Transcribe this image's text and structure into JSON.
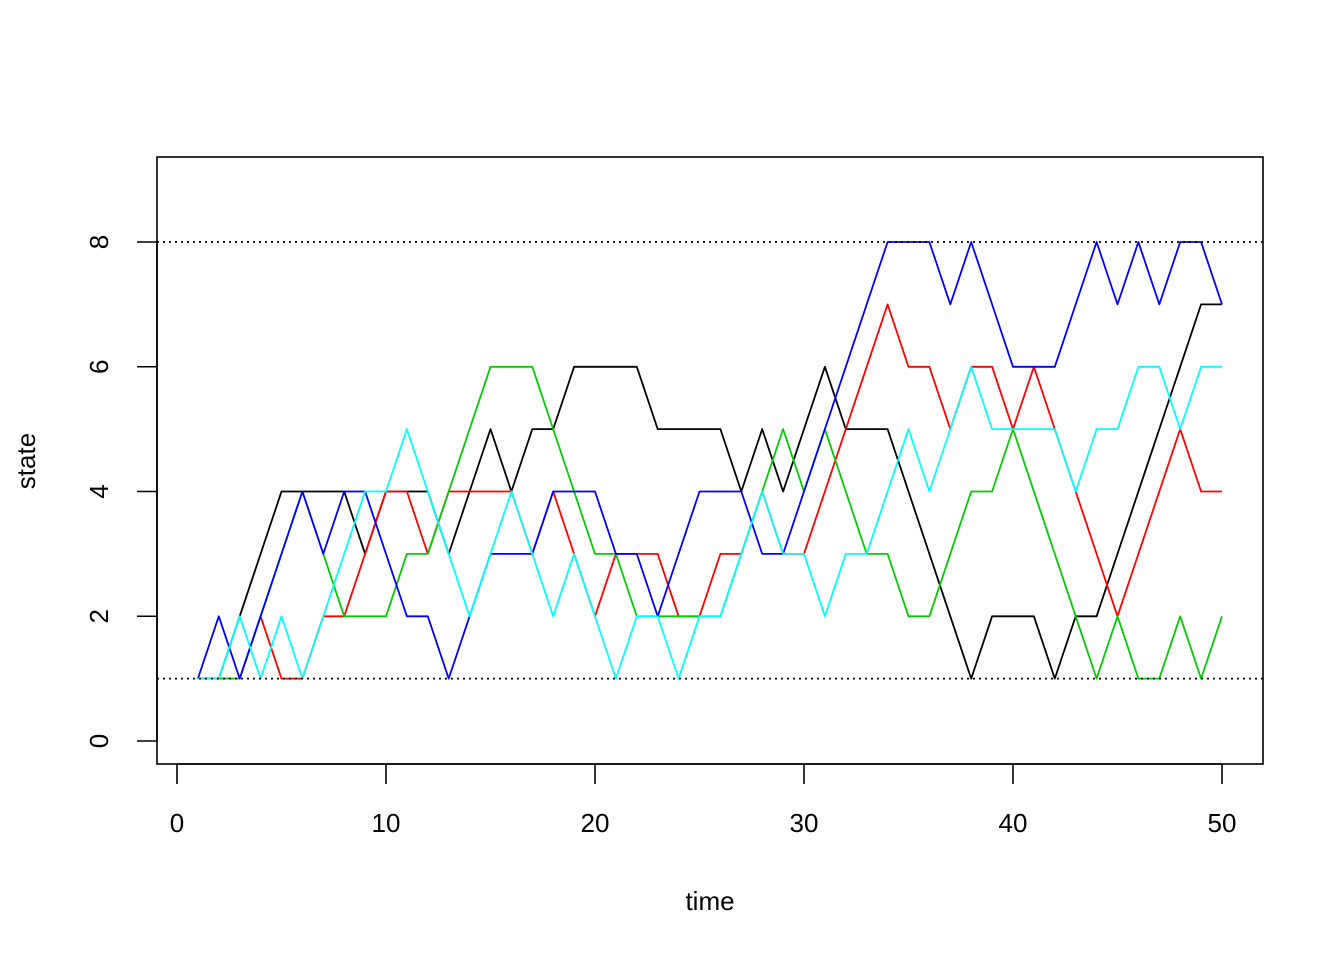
{
  "chart_data": {
    "type": "line",
    "title": "",
    "xlabel": "time",
    "ylabel": "state",
    "xlim": [
      0,
      50
    ],
    "ylim": [
      0,
      9
    ],
    "x_ticks": [
      0,
      10,
      20,
      30,
      40,
      50
    ],
    "y_ticks": [
      0,
      2,
      4,
      6,
      8
    ],
    "grid": false,
    "legend": "none",
    "reference_lines": [
      {
        "axis": "y",
        "value": 1,
        "style": "dotted",
        "color": "#000000"
      },
      {
        "axis": "y",
        "value": 8,
        "style": "dotted",
        "color": "#000000"
      }
    ],
    "x": [
      1,
      2,
      3,
      4,
      5,
      6,
      7,
      8,
      9,
      10,
      11,
      12,
      13,
      14,
      15,
      16,
      17,
      18,
      19,
      20,
      21,
      22,
      23,
      24,
      25,
      26,
      27,
      28,
      29,
      30,
      31,
      32,
      33,
      34,
      35,
      36,
      37,
      38,
      39,
      40,
      41,
      42,
      43,
      44,
      45,
      46,
      47,
      48,
      49,
      50
    ],
    "series": [
      {
        "color": "#000000",
        "values": [
          1,
          1,
          2,
          3,
          4,
          4,
          4,
          4,
          3,
          4,
          4,
          4,
          3,
          4,
          5,
          4,
          5,
          5,
          6,
          6,
          6,
          6,
          5,
          5,
          5,
          5,
          4,
          5,
          4,
          5,
          6,
          5,
          5,
          5,
          4,
          3,
          2,
          1,
          2,
          2,
          2,
          1,
          2,
          2,
          3,
          4,
          5,
          6,
          7,
          7
        ]
      },
      {
        "color": "#ff0000",
        "values": [
          1,
          1,
          1,
          2,
          1,
          1,
          2,
          2,
          3,
          4,
          4,
          3,
          4,
          4,
          4,
          4,
          3,
          4,
          3,
          2,
          3,
          3,
          3,
          2,
          2,
          3,
          3,
          4,
          3,
          3,
          4,
          5,
          6,
          7,
          6,
          6,
          5,
          6,
          6,
          5,
          6,
          5,
          4,
          3,
          2,
          3,
          4,
          5,
          4,
          4
        ]
      },
      {
        "color": "#00cd00",
        "values": [
          1,
          1,
          1,
          2,
          3,
          4,
          3,
          2,
          2,
          2,
          3,
          3,
          4,
          5,
          6,
          6,
          6,
          5,
          4,
          3,
          3,
          2,
          2,
          2,
          2,
          2,
          3,
          4,
          5,
          4,
          5,
          4,
          3,
          3,
          2,
          2,
          3,
          4,
          4,
          5,
          4,
          3,
          2,
          1,
          2,
          1,
          1,
          2,
          1,
          2
        ]
      },
      {
        "color": "#0000ff",
        "values": [
          1,
          2,
          1,
          2,
          3,
          4,
          3,
          4,
          4,
          3,
          2,
          2,
          1,
          2,
          3,
          3,
          3,
          4,
          4,
          4,
          3,
          3,
          2,
          3,
          4,
          4,
          4,
          3,
          3,
          4,
          5,
          6,
          7,
          8,
          8,
          8,
          7,
          8,
          7,
          6,
          6,
          6,
          7,
          8,
          7,
          8,
          7,
          8,
          8,
          7
        ]
      },
      {
        "color": "#00ffff",
        "values": [
          1,
          1,
          2,
          1,
          2,
          1,
          2,
          3,
          4,
          4,
          5,
          4,
          3,
          2,
          3,
          4,
          3,
          2,
          3,
          2,
          1,
          2,
          2,
          1,
          2,
          2,
          3,
          4,
          3,
          3,
          2,
          3,
          3,
          4,
          5,
          4,
          5,
          6,
          5,
          5,
          5,
          5,
          4,
          5,
          5,
          6,
          6,
          5,
          6,
          6
        ]
      }
    ]
  }
}
